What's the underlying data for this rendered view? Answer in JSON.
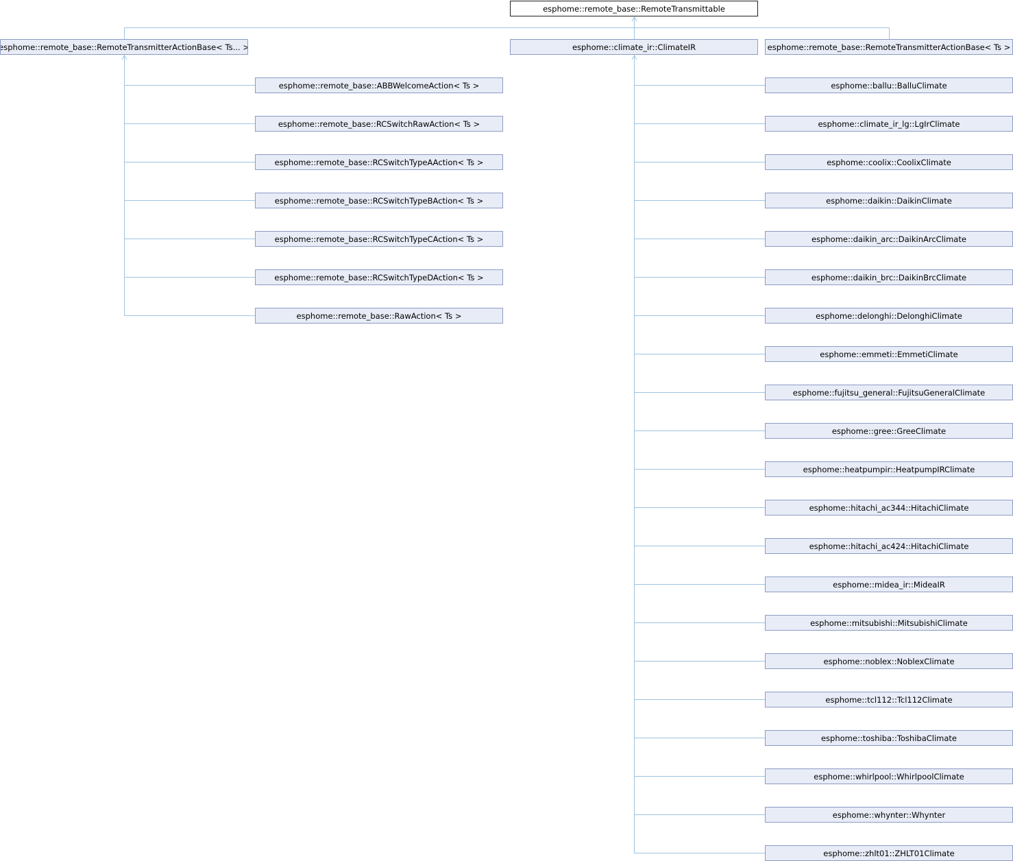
{
  "root": {
    "label": "esphome::remote_base::RemoteTransmittable"
  },
  "level1": [
    {
      "label": "esphome::remote_base::RemoteTransmitterActionBase< Ts... >"
    },
    {
      "label": "esphome::climate_ir::ClimateIR"
    },
    {
      "label": "esphome::remote_base::RemoteTransmitterActionBase< Ts >"
    }
  ],
  "action_children": [
    {
      "label": "esphome::remote_base::ABBWelcomeAction< Ts >"
    },
    {
      "label": "esphome::remote_base::RCSwitchRawAction< Ts >"
    },
    {
      "label": "esphome::remote_base::RCSwitchTypeAAction< Ts >"
    },
    {
      "label": "esphome::remote_base::RCSwitchTypeBAction< Ts >"
    },
    {
      "label": "esphome::remote_base::RCSwitchTypeCAction< Ts >"
    },
    {
      "label": "esphome::remote_base::RCSwitchTypeDAction< Ts >"
    },
    {
      "label": "esphome::remote_base::RawAction< Ts >"
    }
  ],
  "climate_children": [
    {
      "label": "esphome::ballu::BalluClimate"
    },
    {
      "label": "esphome::climate_ir_lg::LgIrClimate"
    },
    {
      "label": "esphome::coolix::CoolixClimate"
    },
    {
      "label": "esphome::daikin::DaikinClimate"
    },
    {
      "label": "esphome::daikin_arc::DaikinArcClimate"
    },
    {
      "label": "esphome::daikin_brc::DaikinBrcClimate"
    },
    {
      "label": "esphome::delonghi::DelonghiClimate"
    },
    {
      "label": "esphome::emmeti::EmmetiClimate"
    },
    {
      "label": "esphome::fujitsu_general::FujitsuGeneralClimate"
    },
    {
      "label": "esphome::gree::GreeClimate"
    },
    {
      "label": "esphome::heatpumpir::HeatpumpIRClimate"
    },
    {
      "label": "esphome::hitachi_ac344::HitachiClimate"
    },
    {
      "label": "esphome::hitachi_ac424::HitachiClimate"
    },
    {
      "label": "esphome::midea_ir::MideaIR"
    },
    {
      "label": "esphome::mitsubishi::MitsubishiClimate"
    },
    {
      "label": "esphome::noblex::NoblexClimate"
    },
    {
      "label": "esphome::tcl112::Tcl112Climate"
    },
    {
      "label": "esphome::toshiba::ToshibaClimate"
    },
    {
      "label": "esphome::whirlpool::WhirlpoolClimate"
    },
    {
      "label": "esphome::whynter::Whynter"
    },
    {
      "label": "esphome::zhlt01::ZHLT01Climate"
    }
  ],
  "colors": {
    "edge": "#9ec3df",
    "node_fill": "#e8ecf6",
    "node_border": "#8c9bc6",
    "root_border": "#202020"
  }
}
